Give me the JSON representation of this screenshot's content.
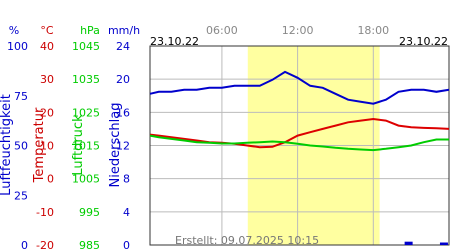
{
  "chart_data": {
    "type": "line",
    "date_start": "23.10.22",
    "date_end": "23.10.22",
    "footer": "Erstellt: 09.07.2025 10:15",
    "xlim": [
      0.3,
      24
    ],
    "xticks": [
      {
        "value": 6,
        "label": "06:00"
      },
      {
        "value": 12,
        "label": "12:00"
      },
      {
        "value": 18,
        "label": "18:00"
      }
    ],
    "daylight": [
      8.05,
      18.5
    ],
    "grid": true,
    "axes": [
      {
        "label": "Luftfeuchtigkeit",
        "unit": "%",
        "color": "#0000cc",
        "ylim": [
          0,
          100
        ],
        "yticks": [
          0,
          25,
          50,
          75,
          100
        ]
      },
      {
        "label": "Temperatur",
        "unit": "°C",
        "color": "#cc0000",
        "ylim": [
          -20,
          40
        ],
        "yticks": [
          -20,
          -10,
          0,
          10,
          20,
          30,
          40
        ]
      },
      {
        "label": "Luftdruck",
        "unit": "hPa",
        "color": "#00cc00",
        "ylim": [
          985,
          1045
        ],
        "yticks": [
          985,
          995,
          1005,
          1015,
          1025,
          1035,
          1045
        ]
      },
      {
        "label": "Niederschlag",
        "unit": "mm/h",
        "color": "#0000cc",
        "ylim": [
          0,
          24
        ],
        "yticks": [
          0,
          4,
          8,
          12,
          16,
          20,
          24
        ]
      }
    ],
    "x": [
      0.3,
      1,
      2,
      3,
      4,
      5,
      6,
      7,
      8,
      9,
      10,
      11,
      12,
      13,
      14,
      15,
      16,
      17,
      18,
      19,
      20,
      21,
      22,
      23,
      24
    ],
    "series": [
      {
        "name": "Luftfeuchtigkeit",
        "axis": 0,
        "kind": "line",
        "color": "#0000cc",
        "values": [
          76,
          77,
          77,
          78,
          78,
          79,
          79,
          80,
          80,
          80,
          83,
          87,
          84,
          80,
          79,
          76,
          73,
          72,
          71,
          73,
          77,
          78,
          78,
          77,
          78
        ]
      },
      {
        "name": "Temperatur",
        "axis": 1,
        "kind": "line",
        "color": "#dd0000",
        "values": [
          13.3,
          13,
          12.5,
          12,
          11.5,
          11,
          10.8,
          10.5,
          10,
          9.5,
          9.6,
          11,
          13,
          14,
          15,
          16,
          17,
          17.5,
          18,
          17.5,
          16,
          15.5,
          15.3,
          15.2,
          15
        ]
      },
      {
        "name": "Luftdruck",
        "axis": 2,
        "kind": "line",
        "color": "#00cc00",
        "values": [
          1018,
          1017.5,
          1017,
          1016.5,
          1016,
          1015.8,
          1015.6,
          1015.6,
          1015.8,
          1016,
          1016.2,
          1016,
          1015.5,
          1015,
          1014.7,
          1014.3,
          1014,
          1013.8,
          1013.6,
          1014,
          1014.5,
          1015,
          1016,
          1016.8,
          1016.8
        ]
      },
      {
        "name": "Niederschlag",
        "axis": 3,
        "kind": "bar",
        "color": "#0000cc",
        "x": [
          20.8,
          23.6
        ],
        "values": [
          0.4,
          0.3
        ]
      }
    ]
  }
}
